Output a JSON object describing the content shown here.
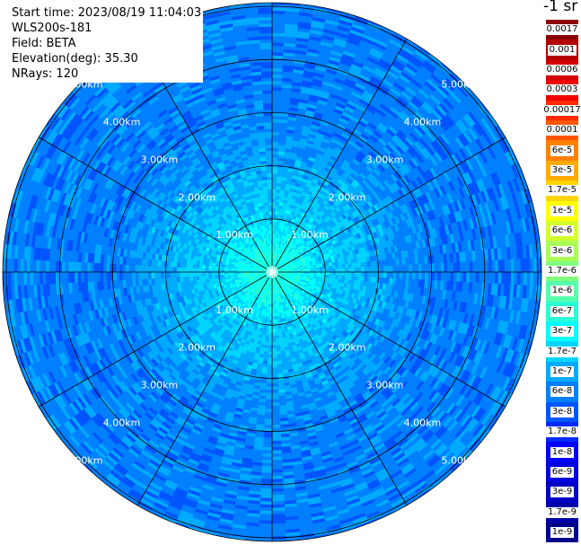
{
  "info": {
    "start_time": "Start time: 2023/08/19 11:04:03",
    "instrument": "WLS200s-181",
    "field": "Field: BETA",
    "elevation": "Elevation(deg): 35.30",
    "nrays": "NRays: 120"
  },
  "chart_data": {
    "type": "heatmap",
    "projection": "polar (PPI scan)",
    "title": "",
    "units": "-1 sr",
    "range_rings_km": [
      1.0,
      2.0,
      3.0,
      4.0,
      5.0
    ],
    "range_ring_labels": [
      "1.00km",
      "2.00km",
      "3.00km",
      "4.00km",
      "5.00km"
    ],
    "ring_label_angles_deg": [
      -45,
      45,
      135,
      225
    ],
    "azimuth_spokes_deg": [
      0,
      30,
      60,
      90,
      120,
      150,
      180,
      210,
      240,
      270,
      300,
      330
    ],
    "max_range_km": 5.2,
    "n_rays": 120,
    "colorbar_labels": [
      "0.0017",
      "0.001",
      "0.0006",
      "0.0003",
      "0.00017",
      "0.0001",
      "6e-5",
      "3e-5",
      "1.7e-5",
      "1e-5",
      "6e-6",
      "3e-6",
      "1.7e-6",
      "1e-6",
      "6e-7",
      "3e-7",
      "1.7e-7",
      "1e-7",
      "6e-8",
      "3e-8",
      "1.7e-8",
      "1e-8",
      "6e-9",
      "3e-9",
      "1.7e-9",
      "1e-9"
    ],
    "colorbar_colors": [
      "#8b0000",
      "#b30000",
      "#d40000",
      "#f00000",
      "#ff2a00",
      "#ff5500",
      "#ff8000",
      "#ffaa00",
      "#ffd400",
      "#ffff00",
      "#d4ff2a",
      "#aaff55",
      "#80ff80",
      "#55ffaa",
      "#2affd4",
      "#00ffff",
      "#00d4ff",
      "#00aaff",
      "#0080ff",
      "#0055ff",
      "#002aff",
      "#0000ff",
      "#0000e0",
      "#0000c4",
      "#0000a8",
      "#00008b"
    ],
    "field_profile": [
      {
        "range_km": 0.0,
        "value": "6e-7"
      },
      {
        "range_km": 0.6,
        "value": "3e-7"
      },
      {
        "range_km": 1.0,
        "value": "1.7e-7"
      },
      {
        "range_km": 2.0,
        "value": "1e-7"
      },
      {
        "range_km": 3.0,
        "value": "6e-8"
      },
      {
        "range_km": 5.0,
        "value": "6e-8"
      }
    ]
  }
}
